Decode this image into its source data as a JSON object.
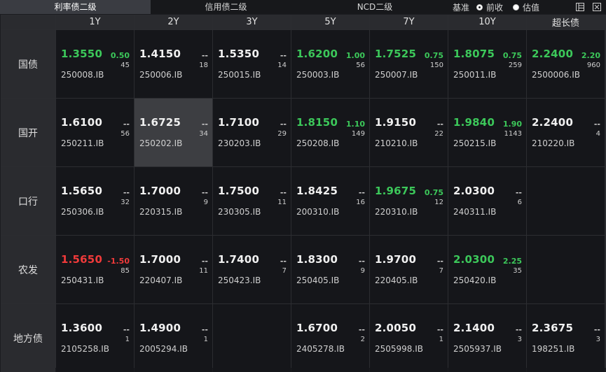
{
  "tabs": [
    {
      "label": "利率债二级",
      "active": true
    },
    {
      "label": "信用债二级",
      "active": false
    },
    {
      "label": "NCD二级",
      "active": false
    }
  ],
  "basis": {
    "label": "基准",
    "options": [
      {
        "label": "前收",
        "selected": true
      },
      {
        "label": "估值",
        "selected": false
      }
    ]
  },
  "toolbar_icons": [
    "layout-icon",
    "close-icon"
  ],
  "columns": [
    "1Y",
    "2Y",
    "3Y",
    "5Y",
    "7Y",
    "10Y",
    "超长债"
  ],
  "rows": [
    {
      "name": "国债",
      "cells": [
        {
          "price": "1.3550",
          "change": "0.50",
          "volume": "45",
          "code": "250008.IB",
          "dir": "up"
        },
        {
          "price": "1.4150",
          "change": "--",
          "volume": "18",
          "code": "250006.IB",
          "dir": ""
        },
        {
          "price": "1.5350",
          "change": "--",
          "volume": "14",
          "code": "250015.IB",
          "dir": ""
        },
        {
          "price": "1.6200",
          "change": "1.00",
          "volume": "56",
          "code": "250003.IB",
          "dir": "up"
        },
        {
          "price": "1.7525",
          "change": "0.75",
          "volume": "150",
          "code": "250007.IB",
          "dir": "up"
        },
        {
          "price": "1.8075",
          "change": "0.75",
          "volume": "259",
          "code": "250011.IB",
          "dir": "up"
        },
        {
          "price": "2.2400",
          "change": "2.20",
          "volume": "960",
          "code": "2500006.IB",
          "dir": "up"
        }
      ]
    },
    {
      "name": "国开",
      "cells": [
        {
          "price": "1.6100",
          "change": "--",
          "volume": "56",
          "code": "250211.IB",
          "dir": ""
        },
        {
          "price": "1.6725",
          "change": "--",
          "volume": "34",
          "code": "250202.IB",
          "dir": "",
          "highlight": true
        },
        {
          "price": "1.7100",
          "change": "--",
          "volume": "29",
          "code": "230203.IB",
          "dir": ""
        },
        {
          "price": "1.8150",
          "change": "1.10",
          "volume": "149",
          "code": "250208.IB",
          "dir": "up"
        },
        {
          "price": "1.9150",
          "change": "--",
          "volume": "22",
          "code": "210210.IB",
          "dir": ""
        },
        {
          "price": "1.9840",
          "change": "1.90",
          "volume": "1143",
          "code": "250215.IB",
          "dir": "up"
        },
        {
          "price": "2.2400",
          "change": "--",
          "volume": "4",
          "code": "210220.IB",
          "dir": ""
        }
      ]
    },
    {
      "name": "口行",
      "cells": [
        {
          "price": "1.5650",
          "change": "--",
          "volume": "32",
          "code": "250306.IB",
          "dir": ""
        },
        {
          "price": "1.7000",
          "change": "--",
          "volume": "9",
          "code": "220315.IB",
          "dir": ""
        },
        {
          "price": "1.7500",
          "change": "--",
          "volume": "11",
          "code": "230305.IB",
          "dir": ""
        },
        {
          "price": "1.8425",
          "change": "--",
          "volume": "16",
          "code": "200310.IB",
          "dir": ""
        },
        {
          "price": "1.9675",
          "change": "0.75",
          "volume": "12",
          "code": "220310.IB",
          "dir": "up"
        },
        {
          "price": "2.0300",
          "change": "--",
          "volume": "6",
          "code": "240311.IB",
          "dir": ""
        },
        null
      ]
    },
    {
      "name": "农发",
      "cells": [
        {
          "price": "1.5650",
          "change": "-1.50",
          "volume": "85",
          "code": "250431.IB",
          "dir": "down"
        },
        {
          "price": "1.7000",
          "change": "--",
          "volume": "11",
          "code": "220407.IB",
          "dir": ""
        },
        {
          "price": "1.7400",
          "change": "--",
          "volume": "7",
          "code": "250423.IB",
          "dir": ""
        },
        {
          "price": "1.8300",
          "change": "--",
          "volume": "9",
          "code": "250405.IB",
          "dir": ""
        },
        {
          "price": "1.9700",
          "change": "--",
          "volume": "7",
          "code": "220405.IB",
          "dir": ""
        },
        {
          "price": "2.0300",
          "change": "2.25",
          "volume": "35",
          "code": "250420.IB",
          "dir": "up"
        },
        null
      ]
    },
    {
      "name": "地方债",
      "cells": [
        {
          "price": "1.3600",
          "change": "--",
          "volume": "1",
          "code": "2105258.IB",
          "dir": ""
        },
        {
          "price": "1.4900",
          "change": "--",
          "volume": "1",
          "code": "2005294.IB",
          "dir": ""
        },
        null,
        {
          "price": "1.6700",
          "change": "--",
          "volume": "2",
          "code": "2405278.IB",
          "dir": ""
        },
        {
          "price": "2.0050",
          "change": "--",
          "volume": "1",
          "code": "2505998.IB",
          "dir": ""
        },
        {
          "price": "2.1400",
          "change": "--",
          "volume": "3",
          "code": "2505937.IB",
          "dir": ""
        },
        {
          "price": "2.3675",
          "change": "--",
          "volume": "3",
          "code": "198251.IB",
          "dir": ""
        }
      ]
    }
  ]
}
